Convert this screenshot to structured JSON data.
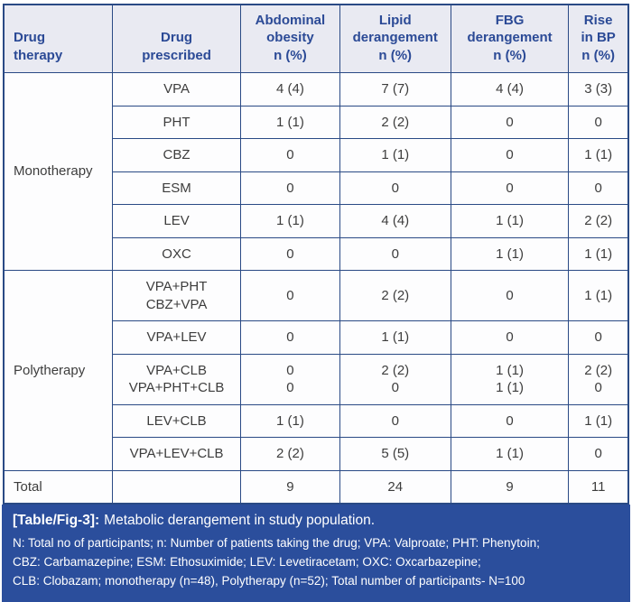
{
  "colors": {
    "accent_blue": "#2b4e9c",
    "grid_border": "#2a4a85",
    "header_bg": "#e9eaf2",
    "header_text": "#2b4a96",
    "body_text": "#3d3d3d"
  },
  "table": {
    "columns": [
      "Drug\ntherapy",
      "Drug\nprescribed",
      "Abdominal\nobesity\nn (%)",
      "Lipid\nderangement\nn (%)",
      "FBG\nderangement\nn (%)",
      "Rise\nin BP\nn (%)"
    ],
    "groups": [
      {
        "therapy": "Monotherapy",
        "rows": [
          {
            "drug": "VPA",
            "values": [
              "4 (4)",
              "7 (7)",
              "4 (4)",
              "3 (3)"
            ]
          },
          {
            "drug": "PHT",
            "values": [
              "1 (1)",
              "2 (2)",
              "0",
              "0"
            ]
          },
          {
            "drug": "CBZ",
            "values": [
              "0",
              "1 (1)",
              "0",
              "1 (1)"
            ]
          },
          {
            "drug": "ESM",
            "values": [
              "0",
              "0",
              "0",
              "0"
            ]
          },
          {
            "drug": "LEV",
            "values": [
              "1 (1)",
              "4 (4)",
              "1 (1)",
              "2 (2)"
            ]
          },
          {
            "drug": "OXC",
            "values": [
              "0",
              "0",
              "1 (1)",
              "1 (1)"
            ]
          }
        ]
      },
      {
        "therapy": "Polytherapy",
        "rows": [
          {
            "drug": "VPA+PHT\nCBZ+VPA",
            "values": [
              "0",
              "2 (2)",
              "0",
              "1 (1)"
            ]
          },
          {
            "drug": "VPA+LEV",
            "values": [
              "0",
              "1 (1)",
              "0",
              "0"
            ]
          },
          {
            "drug": "VPA+CLB\nVPA+PHT+CLB",
            "values": [
              "0\n0",
              "2 (2)\n0",
              "1 (1)\n1 (1)",
              "2 (2)\n0"
            ]
          },
          {
            "drug": "LEV+CLB",
            "values": [
              "1 (1)",
              "0",
              "0",
              "1 (1)"
            ]
          },
          {
            "drug": "VPA+LEV+CLB",
            "values": [
              "2 (2)",
              "5 (5)",
              "1 (1)",
              "0"
            ]
          }
        ]
      }
    ],
    "total": {
      "label": "Total",
      "drug": "",
      "values": [
        "9",
        "24",
        "9",
        "11"
      ]
    }
  },
  "caption": {
    "tag": "[Table/Fig-3]:",
    "title": "Metabolic derangement in study population.",
    "notes": [
      "N: Total no of participants; n: Number of patients taking the drug; VPA: Valproate; PHT: Phenytoin;",
      "CBZ: Carbamazepine; ESM: Ethosuximide; LEV: Levetiracetam; OXC: Oxcarbazepine;",
      "CLB: Clobazam; monotherapy (n=48), Polytherapy (n=52); Total number of participants- N=100"
    ]
  },
  "chart_data": {
    "type": "table",
    "title": "[Table/Fig-3]: Metabolic derangement in study population.",
    "columns": [
      "Drug therapy",
      "Drug prescribed",
      "Abdominal obesity n (%)",
      "Lipid derangement n (%)",
      "FBG derangement n (%)",
      "Rise in BP n (%)"
    ],
    "rows": [
      [
        "Monotherapy",
        "VPA",
        "4 (4)",
        "7 (7)",
        "4 (4)",
        "3 (3)"
      ],
      [
        "Monotherapy",
        "PHT",
        "1 (1)",
        "2 (2)",
        "0",
        "0"
      ],
      [
        "Monotherapy",
        "CBZ",
        "0",
        "1 (1)",
        "0",
        "1 (1)"
      ],
      [
        "Monotherapy",
        "ESM",
        "0",
        "0",
        "0",
        "0"
      ],
      [
        "Monotherapy",
        "LEV",
        "1 (1)",
        "4 (4)",
        "1 (1)",
        "2 (2)"
      ],
      [
        "Monotherapy",
        "OXC",
        "0",
        "0",
        "1 (1)",
        "1 (1)"
      ],
      [
        "Polytherapy",
        "VPA+PHT / CBZ+VPA",
        "0",
        "2 (2)",
        "0",
        "1 (1)"
      ],
      [
        "Polytherapy",
        "VPA+LEV",
        "0",
        "1 (1)",
        "0",
        "0"
      ],
      [
        "Polytherapy",
        "VPA+CLB",
        "0",
        "2 (2)",
        "1 (1)",
        "2 (2)"
      ],
      [
        "Polytherapy",
        "VPA+PHT+CLB",
        "0",
        "0",
        "1 (1)",
        "0"
      ],
      [
        "Polytherapy",
        "LEV+CLB",
        "1 (1)",
        "0",
        "0",
        "1 (1)"
      ],
      [
        "Polytherapy",
        "VPA+LEV+CLB",
        "2 (2)",
        "5 (5)",
        "1 (1)",
        "0"
      ],
      [
        "Total",
        "",
        "9",
        "24",
        "9",
        "11"
      ]
    ]
  }
}
